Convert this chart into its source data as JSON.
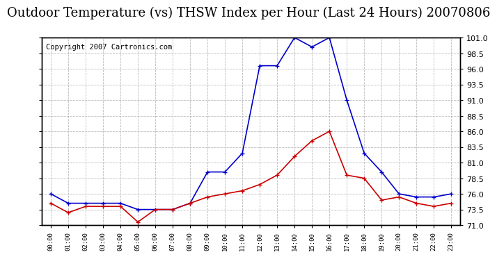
{
  "title": "Outdoor Temperature (vs) THSW Index per Hour (Last 24 Hours) 20070806",
  "copyright": "Copyright 2007 Cartronics.com",
  "hours": [
    "00:00",
    "01:00",
    "02:00",
    "03:00",
    "04:00",
    "05:00",
    "06:00",
    "07:00",
    "08:00",
    "09:00",
    "10:00",
    "11:00",
    "12:00",
    "13:00",
    "14:00",
    "15:00",
    "16:00",
    "17:00",
    "18:00",
    "19:00",
    "20:00",
    "21:00",
    "22:00",
    "23:00"
  ],
  "temp": [
    74.5,
    73.0,
    74.0,
    74.0,
    74.0,
    71.5,
    73.5,
    73.5,
    74.5,
    75.5,
    76.0,
    76.5,
    77.5,
    79.0,
    82.0,
    84.5,
    86.0,
    79.0,
    78.5,
    75.0,
    75.5,
    74.5,
    74.0,
    74.5
  ],
  "thsw": [
    76.0,
    74.5,
    74.5,
    74.5,
    74.5,
    73.5,
    73.5,
    73.5,
    74.5,
    79.5,
    79.5,
    82.5,
    96.5,
    96.5,
    101.0,
    99.5,
    101.0,
    91.0,
    82.5,
    79.5,
    76.0,
    75.5,
    75.5,
    76.0
  ],
  "temp_color": "#cc0000",
  "thsw_color": "#0000cc",
  "ylim_min": 71.0,
  "ylim_max": 101.0,
  "yticks": [
    71.0,
    73.5,
    76.0,
    78.5,
    81.0,
    83.5,
    86.0,
    88.5,
    91.0,
    93.5,
    96.0,
    98.5,
    101.0
  ],
  "bg_color": "#ffffff",
  "grid_color": "#bbbbbb",
  "title_fontsize": 13,
  "copyright_fontsize": 7.5
}
